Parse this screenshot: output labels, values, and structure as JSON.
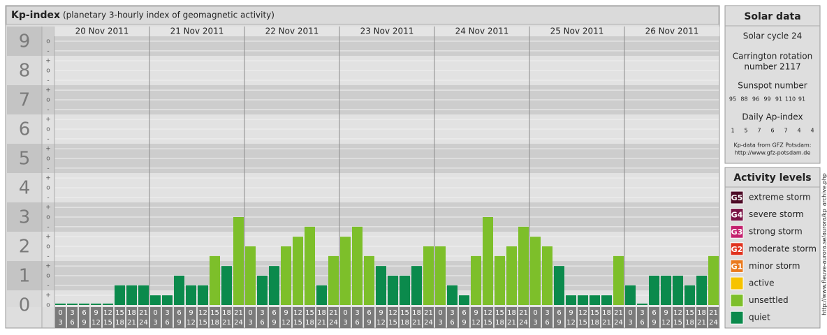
{
  "chart_data": {
    "type": "bar",
    "title": "Kp-index",
    "subtitle": "(planetary 3-hourly index of geomagnetic activity)",
    "series": [
      {
        "name": "20 Nov 2011",
        "values": [
          0,
          0,
          0,
          0,
          0,
          0.67,
          0.67,
          0.67
        ],
        "colors": [
          "#0b8a4c",
          "#0b8a4c",
          "#0b8a4c",
          "#0b8a4c",
          "#0b8a4c",
          "#0b8a4c",
          "#0b8a4c",
          "#0b8a4c"
        ]
      },
      {
        "name": "21 Nov 2011",
        "values": [
          0.33,
          0.33,
          1,
          0.67,
          0.67,
          1.67,
          1.33,
          3
        ],
        "colors": [
          "#0b8a4c",
          "#0b8a4c",
          "#0b8a4c",
          "#0b8a4c",
          "#0b8a4c",
          "#7dbf2a",
          "#0b8a4c",
          "#7dbf2a"
        ]
      },
      {
        "name": "22 Nov 2011",
        "values": [
          2,
          1,
          1.33,
          2,
          2.33,
          2.67,
          0.67,
          1.67
        ],
        "colors": [
          "#7dbf2a",
          "#0b8a4c",
          "#0b8a4c",
          "#7dbf2a",
          "#7dbf2a",
          "#7dbf2a",
          "#0b8a4c",
          "#7dbf2a"
        ]
      },
      {
        "name": "23 Nov 2011",
        "values": [
          2.33,
          2.67,
          1.67,
          1.33,
          1,
          1,
          1.33,
          2
        ],
        "colors": [
          "#7dbf2a",
          "#7dbf2a",
          "#7dbf2a",
          "#0b8a4c",
          "#0b8a4c",
          "#0b8a4c",
          "#0b8a4c",
          "#7dbf2a"
        ]
      },
      {
        "name": "24 Nov 2011",
        "values": [
          2,
          0.67,
          0.33,
          1.67,
          3,
          1.67,
          2,
          2.67
        ],
        "colors": [
          "#7dbf2a",
          "#0b8a4c",
          "#0b8a4c",
          "#7dbf2a",
          "#7dbf2a",
          "#7dbf2a",
          "#7dbf2a",
          "#7dbf2a"
        ]
      },
      {
        "name": "25 Nov 2011",
        "values": [
          2.33,
          2,
          1.33,
          0.33,
          0.33,
          0.33,
          0.33,
          1.67
        ],
        "colors": [
          "#7dbf2a",
          "#7dbf2a",
          "#0b8a4c",
          "#0b8a4c",
          "#0b8a4c",
          "#0b8a4c",
          "#0b8a4c",
          "#7dbf2a"
        ]
      },
      {
        "name": "26 Nov 2011",
        "values": [
          0.67,
          0,
          1,
          1,
          1,
          0.67,
          1,
          1.67
        ],
        "colors": [
          "#0b8a4c",
          "#0b8a4c",
          "#0b8a4c",
          "#0b8a4c",
          "#0b8a4c",
          "#0b8a4c",
          "#0b8a4c",
          "#7dbf2a"
        ]
      }
    ],
    "hours": [
      [
        "0",
        "3"
      ],
      [
        "3",
        "6"
      ],
      [
        "6",
        "9"
      ],
      [
        "9",
        "12"
      ],
      [
        "12",
        "15"
      ],
      [
        "15",
        "18"
      ],
      [
        "18",
        "21"
      ],
      [
        "21",
        "24"
      ]
    ],
    "ylim": [
      0,
      9.5
    ],
    "yticks": [
      0,
      1,
      2,
      3,
      4,
      5,
      6,
      7,
      8,
      9
    ],
    "minor_ticks": [
      {
        "value": 0,
        "label": "o"
      },
      {
        "value": 0.33,
        "label": "+"
      },
      {
        "value": 0.67,
        "label": "-"
      },
      {
        "value": 1,
        "label": "o"
      },
      {
        "value": 1.33,
        "label": "+"
      },
      {
        "value": 1.67,
        "label": "-"
      },
      {
        "value": 2,
        "label": "o"
      },
      {
        "value": 2.33,
        "label": "+"
      },
      {
        "value": 2.67,
        "label": "-"
      },
      {
        "value": 3,
        "label": "o"
      },
      {
        "value": 3.33,
        "label": "+"
      },
      {
        "value": 3.67,
        "label": "-"
      },
      {
        "value": 4,
        "label": "o"
      },
      {
        "value": 4.33,
        "label": "+"
      },
      {
        "value": 4.67,
        "label": "-"
      },
      {
        "value": 5,
        "label": "o"
      },
      {
        "value": 5.33,
        "label": "+"
      },
      {
        "value": 5.67,
        "label": "-"
      },
      {
        "value": 6,
        "label": "o"
      },
      {
        "value": 6.33,
        "label": "+"
      },
      {
        "value": 6.67,
        "label": "-"
      },
      {
        "value": 7,
        "label": "o"
      },
      {
        "value": 7.33,
        "label": "+"
      },
      {
        "value": 7.67,
        "label": "-"
      },
      {
        "value": 8,
        "label": "o"
      },
      {
        "value": 8.33,
        "label": "+"
      },
      {
        "value": 8.67,
        "label": "-"
      },
      {
        "value": 9,
        "label": "o"
      }
    ],
    "grid": true
  },
  "solar_data": {
    "title": "Solar data",
    "cycle": "Solar cycle 24",
    "carrington": [
      "Carrington rotation",
      "number 2117"
    ],
    "sunspot_title": "Sunspot number",
    "sunspot_numbers": [
      95,
      88,
      96,
      99,
      91,
      110,
      91
    ],
    "ap_title": "Daily Ap-index",
    "ap_index": [
      1,
      5,
      7,
      6,
      7,
      4,
      4
    ],
    "source": [
      "Kp-data from GFZ Potsdam:",
      "http://www.gfz-potsdam.de"
    ]
  },
  "activity_levels": {
    "title": "Activity levels",
    "items": [
      {
        "code": "G5",
        "name": "extreme storm",
        "color": "#4d0a26"
      },
      {
        "code": "G4",
        "name": "severe storm",
        "color": "#7a1245"
      },
      {
        "code": "G3",
        "name": "strong storm",
        "color": "#c4206e"
      },
      {
        "code": "G2",
        "name": "moderate storm",
        "color": "#e0321e"
      },
      {
        "code": "G1",
        "name": "minor storm",
        "color": "#ea7a1e"
      },
      {
        "name": "active",
        "color": "#f6c300"
      },
      {
        "name": "unsettled",
        "color": "#7dbf2a"
      },
      {
        "name": "quiet",
        "color": "#0b8a4c"
      }
    ]
  },
  "side_url": "http://www.fleuve-aurora.se/aurora/kp_archive.php"
}
